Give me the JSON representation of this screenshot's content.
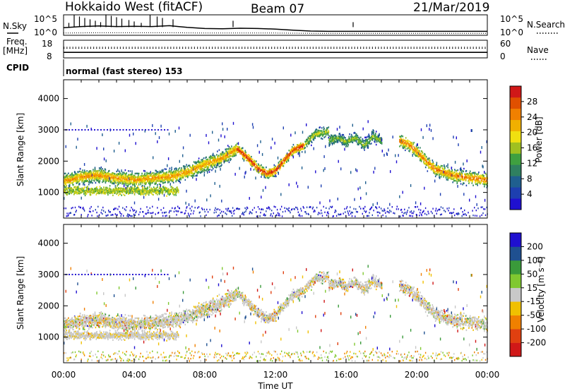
{
  "header": {
    "station": "Hokkaido West (fitACF)",
    "beam": "Beam 07",
    "date": "21/Mar/2019"
  },
  "left_panel_labels": {
    "nsky": "N.Sky",
    "freq_line1": "Freq.",
    "freq_line2": "[MHz]",
    "cpid": "CPID"
  },
  "right_panel_labels": {
    "nsearch": "N.Search",
    "nave": "Nave"
  },
  "mode_text": "normal (fast stereo) 153",
  "chart_data": [
    {
      "type": "line",
      "name": "noise-panel",
      "yticks_left": [
        "10^5",
        "10^0"
      ],
      "yticks_right": [
        "10^5",
        "10^0"
      ],
      "series": [
        {
          "label": "N.Sky",
          "style": "solid",
          "x": [
            0,
            1,
            2,
            3,
            4,
            5,
            6,
            7,
            8,
            9,
            10,
            11,
            12,
            13,
            14,
            15,
            16,
            17,
            18,
            19,
            20,
            21,
            22,
            23,
            24
          ],
          "values": [
            2.2,
            2.6,
            2.8,
            2.6,
            2.7,
            2.6,
            2.9,
            2.3,
            1.9,
            1.8,
            2.0,
            1.9,
            1.7,
            1.3,
            1.0,
            0.9,
            0.9,
            0.9,
            0.9,
            0.9,
            0.9,
            0.9,
            0.9,
            0.9,
            0.9
          ]
        },
        {
          "label": "N.Search",
          "style": "dotted",
          "x": [
            0,
            2,
            4,
            6,
            8,
            10,
            12,
            14,
            16,
            18,
            20,
            22,
            24
          ],
          "values": [
            0.3,
            0.4,
            0.4,
            0.4,
            0.3,
            0.3,
            0.3,
            0.2,
            0.2,
            0.2,
            0.2,
            0.2,
            0.2
          ]
        }
      ]
    },
    {
      "type": "line",
      "name": "frequency-panel",
      "yticks_left": [
        "18",
        "8"
      ],
      "yticks_right": [
        "60",
        "0"
      ],
      "series": [
        {
          "label": "Freq",
          "style": "solid",
          "x": [
            0,
            24
          ],
          "values": [
            11.0,
            11.0
          ]
        },
        {
          "label": "Nave",
          "style": "dotted",
          "x": [
            0,
            24
          ],
          "values": [
            34,
            34
          ]
        }
      ]
    },
    {
      "type": "heatmap",
      "name": "power-panel",
      "ylabel": "Slant Range [km]",
      "ylim": [
        180,
        4600
      ],
      "yticks": [
        1000,
        2000,
        3000,
        4000
      ],
      "xlim": [
        0,
        24
      ],
      "colorbar": {
        "label": "Power [dB]",
        "ticks": [
          "4",
          "8",
          "12",
          "16",
          "20",
          "24",
          "28"
        ],
        "colors": [
          "#1f10d0",
          "#1d3fb0",
          "#1f5f8f",
          "#2f8060",
          "#3fa040",
          "#a0c020",
          "#f0e010",
          "#f0b000",
          "#f08000",
          "#e05000",
          "#d01818"
        ]
      },
      "echo_bands": [
        {
          "t": [
            0.0,
            0.5,
            1.0,
            2.0,
            3.0,
            4.0,
            5.0,
            6.0,
            7.0,
            8.0,
            9.0,
            9.8
          ],
          "range_center": [
            1350,
            1420,
            1500,
            1550,
            1450,
            1400,
            1450,
            1500,
            1650,
            1900,
            2100,
            2400
          ],
          "peak_db": 22
        },
        {
          "t": [
            9.8,
            10.5,
            11.0,
            11.5,
            12.0,
            12.5,
            13.0,
            13.6
          ],
          "range_center": [
            2400,
            2050,
            1750,
            1600,
            1700,
            2050,
            2350,
            2500
          ],
          "peak_db": 28
        },
        {
          "t": [
            13.6,
            14.2,
            15.0
          ],
          "range_center": [
            2500,
            2850,
            2950
          ],
          "peak_db": 16
        },
        {
          "t": [
            15.0,
            15.5,
            16.0,
            16.5,
            17.0,
            17.5,
            18.0
          ],
          "range_center": [
            2650,
            2750,
            2600,
            2750,
            2500,
            2800,
            2650
          ],
          "peak_db": 14
        },
        {
          "t": [
            19.0,
            19.5,
            20.0,
            20.5,
            21.0,
            22.0,
            23.0,
            24.0
          ],
          "range_center": [
            2650,
            2550,
            2300,
            2000,
            1750,
            1550,
            1450,
            1400
          ],
          "peak_db": 24
        }
      ]
    },
    {
      "type": "heatmap",
      "name": "velocity-panel",
      "ylabel": "Slant Range [km]",
      "xlabel": "Time UT",
      "ylim": [
        180,
        4600
      ],
      "yticks": [
        1000,
        2000,
        3000,
        4000
      ],
      "xlim": [
        0,
        24
      ],
      "xticks": [
        "00:00",
        "04:00",
        "08:00",
        "12:00",
        "16:00",
        "20:00",
        "00:00"
      ],
      "colorbar": {
        "label": "Velocity [m s⁻¹]",
        "ticks": [
          "200",
          "100",
          "50",
          "15",
          "-15",
          "-50",
          "-100",
          "-200"
        ],
        "colors": [
          "#1f10d0",
          "#1f5090",
          "#3a9a3a",
          "#80c830",
          "#c8c8c8",
          "#f0c000",
          "#f08000",
          "#e04010",
          "#d01818"
        ]
      }
    }
  ]
}
